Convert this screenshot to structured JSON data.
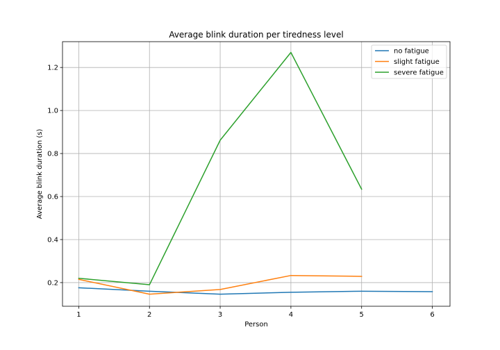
{
  "chart_data": {
    "type": "line",
    "title": "Average blink duration per tiredness level",
    "xlabel": "Person",
    "ylabel": "Average blink duration (s)",
    "xlim": [
      0.77,
      6.25
    ],
    "ylim": [
      0.09,
      1.32
    ],
    "xticks": [
      1,
      2,
      3,
      4,
      5,
      6
    ],
    "yticks": [
      0.2,
      0.4,
      0.6,
      0.8,
      1.0,
      1.2
    ],
    "xtick_labels": [
      "1",
      "2",
      "3",
      "4",
      "5",
      "6"
    ],
    "ytick_labels": [
      "0.2",
      "0.4",
      "0.6",
      "0.8",
      "1.0",
      "1.2"
    ],
    "grid": true,
    "legend_position": "top-right",
    "series": [
      {
        "name": "no fatigue",
        "color": "#1f77b4",
        "x": [
          1,
          2,
          3,
          4,
          5,
          6
        ],
        "values": [
          0.176,
          0.16,
          0.146,
          0.155,
          0.16,
          0.158
        ]
      },
      {
        "name": "slight fatigue",
        "color": "#ff7f0e",
        "x": [
          1,
          2,
          3,
          4,
          5
        ],
        "values": [
          0.215,
          0.146,
          0.168,
          0.233,
          0.229
        ]
      },
      {
        "name": "severe fatigue",
        "color": "#2ca02c",
        "x": [
          1,
          2,
          3,
          4,
          5
        ],
        "values": [
          0.22,
          0.19,
          0.862,
          1.27,
          0.634
        ]
      }
    ]
  }
}
